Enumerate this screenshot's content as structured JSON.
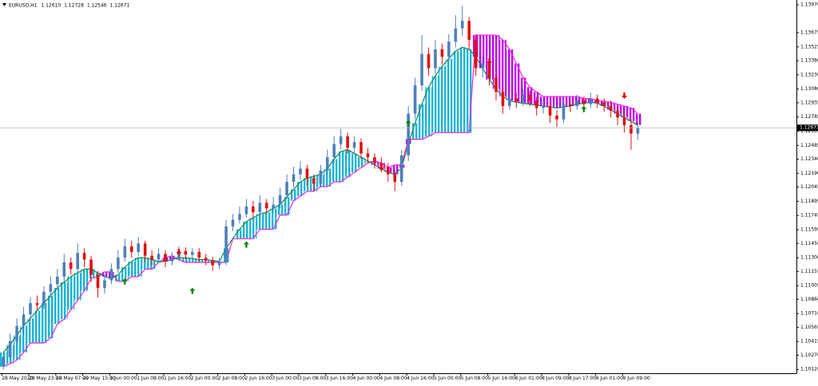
{
  "chart_data": {
    "type": "candlestick",
    "title": "EURUSD,H1",
    "last_bar": [
      "1.12610",
      "1.12728",
      "1.12546",
      "1.12671"
    ],
    "current_price": {
      "value": 1.12671,
      "label": "1.12671"
    },
    "xlim": [
      -0.5,
      117.5
    ],
    "ylim": [
      1.1008,
      1.1402
    ],
    "up_color": "#4f7fb8",
    "down_color": "#e01010",
    "open": [
      1.1015,
      1.1025,
      1.1042,
      1.1058,
      1.107,
      1.1082,
      1.108,
      1.1094,
      1.1102,
      1.111,
      1.1125,
      1.1118,
      1.1135,
      1.1128,
      1.1112,
      1.1098,
      1.1106,
      1.1118,
      1.113,
      1.1142,
      1.1136,
      1.1145,
      1.1132,
      1.1128,
      1.1134,
      1.1126,
      1.113,
      1.1137,
      1.1133,
      1.1136,
      1.113,
      1.1127,
      1.1122,
      1.1125,
      1.1163,
      1.117,
      1.1176,
      1.1184,
      1.1178,
      1.1188,
      1.1182,
      1.1186,
      1.1196,
      1.121,
      1.1218,
      1.1224,
      1.1214,
      1.1208,
      1.1222,
      1.1236,
      1.125,
      1.1258,
      1.1246,
      1.1252,
      1.124,
      1.1236,
      1.123,
      1.1226,
      1.1218,
      1.121,
      1.1238,
      1.1282,
      1.1312,
      1.1345,
      1.133,
      1.135,
      1.1342,
      1.1358,
      1.1372,
      1.138,
      1.136,
      1.133,
      1.1335,
      1.132,
      1.1305,
      1.129,
      1.1298,
      1.1295,
      1.1302,
      1.1296,
      1.1288,
      1.129,
      1.128,
      1.1276,
      1.1292,
      1.129,
      1.1296,
      1.1292,
      1.1298,
      1.1294,
      1.129,
      1.1285,
      1.1278,
      1.127,
      1.1261
    ],
    "high": [
      1.103,
      1.105,
      1.1066,
      1.1078,
      1.1088,
      1.109,
      1.11,
      1.111,
      1.1118,
      1.1134,
      1.113,
      1.1145,
      1.114,
      1.1132,
      1.1116,
      1.1112,
      1.1124,
      1.1138,
      1.115,
      1.1148,
      1.1152,
      1.1148,
      1.1138,
      1.114,
      1.1138,
      1.1136,
      1.1142,
      1.1141,
      1.114,
      1.114,
      1.1134,
      1.1131,
      1.113,
      1.117,
      1.1176,
      1.1184,
      1.1192,
      1.119,
      1.1196,
      1.1192,
      1.1194,
      1.1204,
      1.1218,
      1.1226,
      1.1232,
      1.1228,
      1.1218,
      1.1228,
      1.1244,
      1.1258,
      1.1266,
      1.1262,
      1.1258,
      1.1256,
      1.1246,
      1.124,
      1.1236,
      1.123,
      1.1222,
      1.1244,
      1.129,
      1.132,
      1.1365,
      1.1352,
      1.136,
      1.1356,
      1.1366,
      1.1386,
      1.1396,
      1.1384,
      1.1366,
      1.1342,
      1.134,
      1.1324,
      1.131,
      1.1306,
      1.1304,
      1.1308,
      1.1306,
      1.13,
      1.1296,
      1.1294,
      1.1286,
      1.13,
      1.1298,
      1.1302,
      1.13,
      1.1304,
      1.1302,
      1.1298,
      1.1296,
      1.129,
      1.1284,
      1.1276,
      1.12728
    ],
    "low": [
      1.1012,
      1.102,
      1.1036,
      1.105,
      1.1064,
      1.1074,
      1.1076,
      1.1088,
      1.1096,
      1.1104,
      1.1112,
      1.1114,
      1.112,
      1.1104,
      1.1088,
      1.1092,
      1.1102,
      1.1114,
      1.1126,
      1.113,
      1.1132,
      1.1126,
      1.1122,
      1.1124,
      1.112,
      1.1122,
      1.1126,
      1.1128,
      1.1128,
      1.1126,
      1.1122,
      1.1116,
      1.1118,
      1.1122,
      1.1158,
      1.1166,
      1.1172,
      1.1172,
      1.1174,
      1.1176,
      1.1178,
      1.1182,
      1.1192,
      1.1204,
      1.1212,
      1.1206,
      1.12,
      1.1204,
      1.1218,
      1.123,
      1.1244,
      1.124,
      1.124,
      1.1234,
      1.123,
      1.1224,
      1.122,
      1.121,
      1.12,
      1.1206,
      1.1232,
      1.1276,
      1.1306,
      1.1322,
      1.1324,
      1.1334,
      1.1336,
      1.1352,
      1.1364,
      1.135,
      1.1322,
      1.132,
      1.1312,
      1.1296,
      1.1282,
      1.1286,
      1.1288,
      1.129,
      1.129,
      1.128,
      1.1282,
      1.1272,
      1.1268,
      1.1272,
      1.1284,
      1.1286,
      1.1286,
      1.1288,
      1.1288,
      1.1284,
      1.1278,
      1.127,
      1.1262,
      1.1244,
      1.12546
    ],
    "close": [
      1.1025,
      1.1042,
      1.1058,
      1.107,
      1.1082,
      1.108,
      1.1094,
      1.1102,
      1.111,
      1.1125,
      1.1118,
      1.1135,
      1.1128,
      1.1112,
      1.1098,
      1.1106,
      1.1118,
      1.113,
      1.1142,
      1.1136,
      1.1145,
      1.1132,
      1.1128,
      1.1134,
      1.1126,
      1.113,
      1.1137,
      1.1133,
      1.1136,
      1.113,
      1.1127,
      1.1122,
      1.1125,
      1.1163,
      1.117,
      1.1176,
      1.1184,
      1.1178,
      1.1188,
      1.1182,
      1.1186,
      1.1196,
      1.121,
      1.1218,
      1.1224,
      1.1214,
      1.1208,
      1.1222,
      1.1236,
      1.125,
      1.1258,
      1.1246,
      1.1252,
      1.124,
      1.1236,
      1.123,
      1.1226,
      1.1218,
      1.121,
      1.1238,
      1.1282,
      1.1312,
      1.1345,
      1.133,
      1.135,
      1.1342,
      1.1358,
      1.1372,
      1.138,
      1.136,
      1.133,
      1.1335,
      1.132,
      1.1305,
      1.129,
      1.1298,
      1.1295,
      1.1302,
      1.1296,
      1.1288,
      1.129,
      1.128,
      1.1276,
      1.1292,
      1.129,
      1.1296,
      1.1292,
      1.1298,
      1.1294,
      1.129,
      1.1285,
      1.1278,
      1.127,
      1.1261,
      1.12671
    ],
    "span_a": [
      1.103,
      1.1038,
      1.1048,
      1.1058,
      1.1066,
      1.1074,
      1.1082,
      1.109,
      1.1098,
      1.1104,
      1.111,
      1.1114,
      1.1118,
      1.1118,
      1.1114,
      1.111,
      1.1108,
      1.1112,
      1.112,
      1.1126,
      1.113,
      1.113,
      1.1128,
      1.1126,
      1.1126,
      1.1128,
      1.113,
      1.113,
      1.1129,
      1.1128,
      1.1128,
      1.1127,
      1.1126,
      1.114,
      1.115,
      1.116,
      1.1168,
      1.1172,
      1.1176,
      1.1178,
      1.1182,
      1.1186,
      1.1194,
      1.1202,
      1.121,
      1.1214,
      1.1216,
      1.1218,
      1.1224,
      1.1234,
      1.1242,
      1.1244,
      1.124,
      1.1236,
      1.1232,
      1.1228,
      1.1224,
      1.122,
      1.1218,
      1.1225,
      1.125,
      1.1272,
      1.1292,
      1.131,
      1.1322,
      1.1332,
      1.134,
      1.1348,
      1.1352,
      1.135,
      1.1342,
      1.133,
      1.1318,
      1.1308,
      1.13,
      1.1296,
      1.1294,
      1.1293,
      1.1292,
      1.1291,
      1.129,
      1.1289,
      1.1288,
      1.1289,
      1.129,
      1.1292,
      1.1293,
      1.1294,
      1.1293,
      1.129,
      1.1286,
      1.1282,
      1.1278,
      1.1274,
      1.127
    ],
    "span_b": [
      1.1015,
      1.1018,
      1.1022,
      1.103,
      1.104,
      1.104,
      1.104,
      1.1045,
      1.106,
      1.1065,
      1.1075,
      1.1085,
      1.1095,
      1.1108,
      1.111,
      1.1115,
      1.1115,
      1.1105,
      1.1105,
      1.111,
      1.111,
      1.1118,
      1.1118,
      1.1125,
      1.113,
      1.1132,
      1.1128,
      1.1125,
      1.1125,
      1.1125,
      1.1125,
      1.1125,
      1.1125,
      1.1125,
      1.115,
      1.115,
      1.115,
      1.115,
      1.116,
      1.116,
      1.116,
      1.1175,
      1.1175,
      1.119,
      1.1195,
      1.12,
      1.12,
      1.1205,
      1.1205,
      1.121,
      1.121,
      1.1215,
      1.122,
      1.1225,
      1.123,
      1.1232,
      1.123,
      1.1225,
      1.1228,
      1.1228,
      1.1255,
      1.1255,
      1.1255,
      1.1258,
      1.1262,
      1.1262,
      1.1262,
      1.1262,
      1.1262,
      1.1262,
      1.1365,
      1.1365,
      1.1365,
      1.1365,
      1.136,
      1.135,
      1.1335,
      1.132,
      1.131,
      1.1305,
      1.13,
      1.13,
      1.13,
      1.13,
      1.13,
      1.13,
      1.1298,
      1.1298,
      1.1296,
      1.1295,
      1.1294,
      1.1292,
      1.129,
      1.1288,
      1.1282
    ],
    "span_a_color": "#128a4c",
    "span_b_color": "#ff22dd",
    "cloud_up_color": "#17b4d4",
    "cloud_down_color": "#bb00ee",
    "signals": [
      {
        "index": 18,
        "price": 1.1105,
        "direction": "up"
      },
      {
        "index": 28,
        "price": 1.1095,
        "direction": "up"
      },
      {
        "index": 36,
        "price": 1.1144,
        "direction": "up"
      },
      {
        "index": 60,
        "price": 1.1272,
        "direction": "up"
      },
      {
        "index": 86,
        "price": 1.1287,
        "direction": "up"
      },
      {
        "index": 26,
        "price": 1.1136,
        "direction": "down"
      },
      {
        "index": 56,
        "price": 1.1225,
        "direction": "down"
      },
      {
        "index": 72,
        "price": 1.1337,
        "direction": "down"
      },
      {
        "index": 92,
        "price": 1.1301,
        "direction": "down"
      }
    ],
    "signal_up_color": "#0a8a0a",
    "signal_down_color": "#e00000",
    "yticks": [
      {
        "value": 1.1397,
        "label": "1.13970"
      },
      {
        "value": 1.13675,
        "label": "1.13675"
      },
      {
        "value": 1.13525,
        "label": "1.13525"
      },
      {
        "value": 1.1338,
        "label": "1.13380"
      },
      {
        "value": 1.1323,
        "label": "1.13230"
      },
      {
        "value": 1.1308,
        "label": "1.13080"
      },
      {
        "value": 1.12935,
        "label": "1.12935"
      },
      {
        "value": 1.12785,
        "label": "1.12785"
      },
      {
        "value": 1.12635,
        "label": "1.12635"
      },
      {
        "value": 1.12485,
        "label": "1.12485"
      },
      {
        "value": 1.1234,
        "label": "1.12340"
      },
      {
        "value": 1.1219,
        "label": "1.12190"
      },
      {
        "value": 1.12045,
        "label": "1.12045"
      },
      {
        "value": 1.11895,
        "label": "1.11895"
      },
      {
        "value": 1.11745,
        "label": "1.11745"
      },
      {
        "value": 1.11595,
        "label": "1.11595"
      },
      {
        "value": 1.1145,
        "label": "1.11450"
      },
      {
        "value": 1.113,
        "label": "1.11300"
      },
      {
        "value": 1.11155,
        "label": "1.11155"
      },
      {
        "value": 1.11005,
        "label": "1.11005"
      },
      {
        "value": 1.1086,
        "label": "1.10860"
      },
      {
        "value": 1.1071,
        "label": "1.10710"
      },
      {
        "value": 1.10565,
        "label": "1.10565"
      },
      {
        "value": 1.10415,
        "label": "1.10415"
      },
      {
        "value": 1.1027,
        "label": "1.10270"
      },
      {
        "value": 1.1012,
        "label": "1.10120"
      }
    ],
    "xticks": [
      {
        "value": 0,
        "label": "28 May 2020"
      },
      {
        "value": 4,
        "label": "28 May 23:00"
      },
      {
        "value": 8,
        "label": "29 May 07:00"
      },
      {
        "value": 12,
        "label": "29 May 15:00"
      },
      {
        "value": 16,
        "label": "1 Jun 00:00"
      },
      {
        "value": 20,
        "label": "1 Jun 08:00"
      },
      {
        "value": 24,
        "label": "1 Jun 16:00"
      },
      {
        "value": 28,
        "label": "2 Jun 00:00"
      },
      {
        "value": 32,
        "label": "2 Jun 08:00"
      },
      {
        "value": 36,
        "label": "2 Jun 16:00"
      },
      {
        "value": 40,
        "label": "3 Jun 00:00"
      },
      {
        "value": 44,
        "label": "3 Jun 08:00"
      },
      {
        "value": 48,
        "label": "3 Jun 16:00"
      },
      {
        "value": 52,
        "label": "4 Jun 00:00"
      },
      {
        "value": 56,
        "label": "4 Jun 08:00"
      },
      {
        "value": 60,
        "label": "4 Jun 16:00"
      },
      {
        "value": 64,
        "label": "5 Jun 00:00"
      },
      {
        "value": 68,
        "label": "5 Jun 08:00"
      },
      {
        "value": 72,
        "label": "5 Jun 16:00"
      },
      {
        "value": 76,
        "label": "8 Jun 01:00"
      },
      {
        "value": 80,
        "label": "8 Jun 09:00"
      },
      {
        "value": 84,
        "label": "8 Jun 17:00"
      },
      {
        "value": 88,
        "label": "9 Jun 01:00"
      },
      {
        "value": 92,
        "label": "9 Jun 09:00"
      }
    ]
  }
}
